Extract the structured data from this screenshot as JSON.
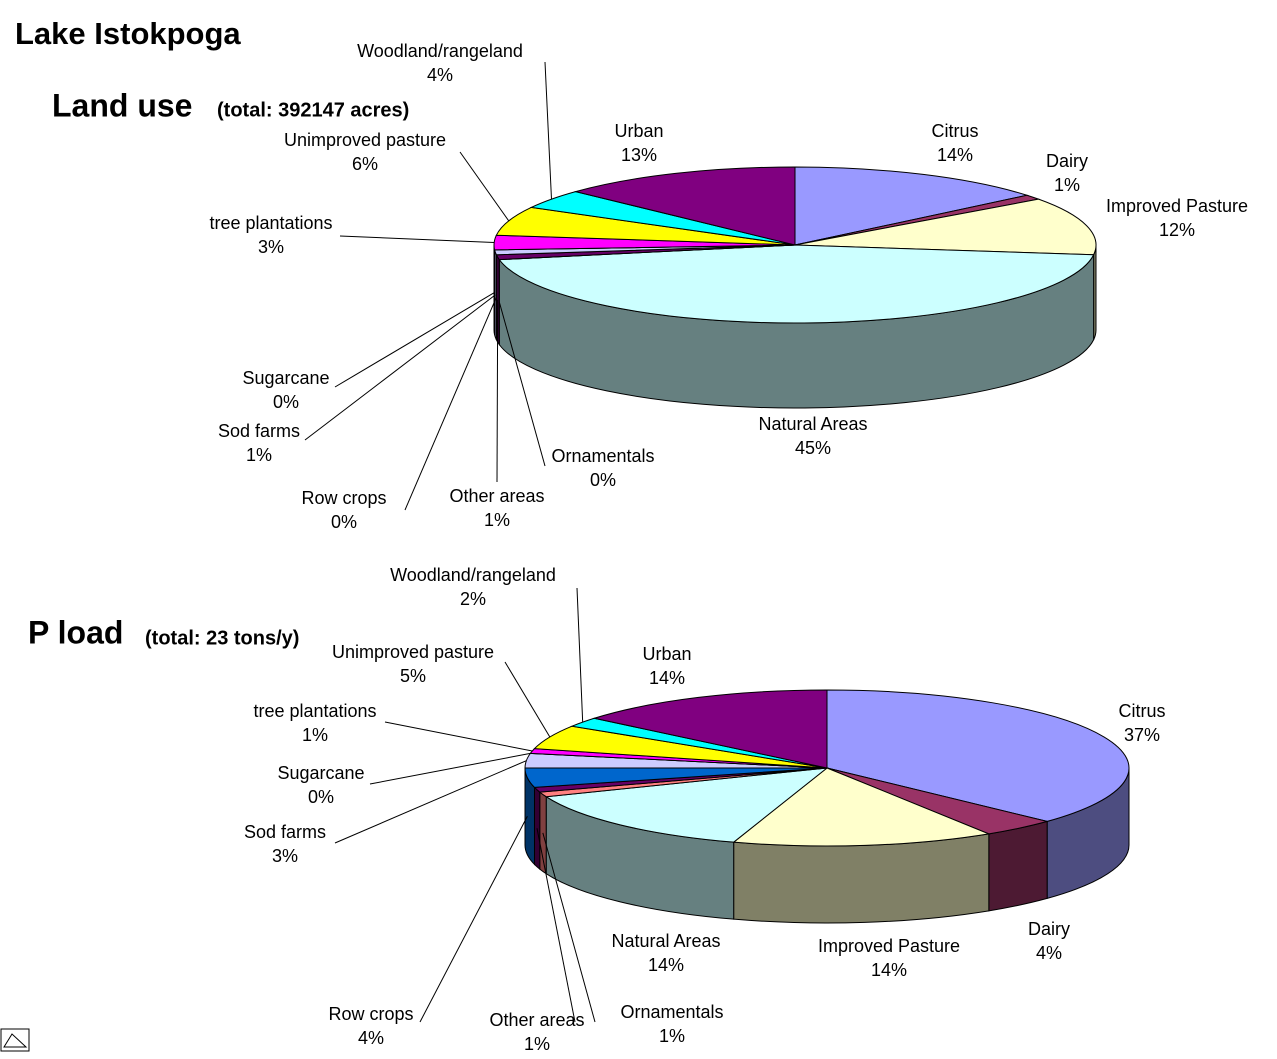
{
  "title": "Lake Istokpoga",
  "chart_data": [
    {
      "type": "pie",
      "title": "Land use",
      "subtitle": "(total: 392147 acres)",
      "categories": [
        "Citrus",
        "Dairy",
        "Improved Pasture",
        "Natural Areas",
        "Ornamentals",
        "Other areas",
        "Row crops",
        "Sod farms",
        "Sugarcane",
        "tree plantations",
        "Unimproved pasture",
        "Woodland/rangeland",
        "Urban"
      ],
      "values": [
        14,
        1,
        12,
        45,
        0,
        1,
        0,
        1,
        0,
        3,
        6,
        4,
        13
      ],
      "value_labels": [
        "14%",
        "1%",
        "12%",
        "45%",
        "0%",
        "1%",
        "0%",
        "1%",
        "0%",
        "3%",
        "6%",
        "4%",
        "13%"
      ],
      "colors": [
        "#9999ff",
        "#993366",
        "#ffffcc",
        "#ccffff",
        "#ff8080",
        "#660066",
        "#0066cc",
        "#ccccff",
        "#000080",
        "#ff00ff",
        "#ffff00",
        "#00ffff",
        "#800080"
      ]
    },
    {
      "type": "pie",
      "title": "P load",
      "subtitle": "(total: 23 tons/y)",
      "categories": [
        "Citrus",
        "Dairy",
        "Improved Pasture",
        "Natural Areas",
        "Ornamentals",
        "Other areas",
        "Row crops",
        "Sod farms",
        "Sugarcane",
        "tree plantations",
        "Unimproved pasture",
        "Woodland/rangeland",
        "Urban"
      ],
      "values": [
        37,
        4,
        14,
        14,
        1,
        1,
        4,
        3,
        0,
        1,
        5,
        2,
        14
      ],
      "value_labels": [
        "37%",
        "4%",
        "14%",
        "14%",
        "1%",
        "1%",
        "4%",
        "3%",
        "0%",
        "1%",
        "5%",
        "2%",
        "14%"
      ],
      "colors": [
        "#9999ff",
        "#993366",
        "#ffffcc",
        "#ccffff",
        "#ff8080",
        "#660066",
        "#0066cc",
        "#ccccff",
        "#000080",
        "#ff00ff",
        "#ffff00",
        "#00ffff",
        "#800080"
      ]
    }
  ]
}
